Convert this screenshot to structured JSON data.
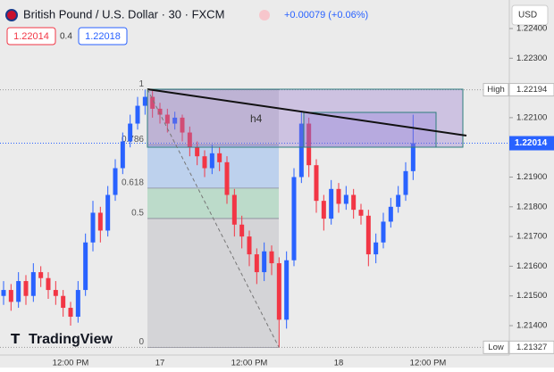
{
  "chart_data": {
    "type": "candlestick",
    "title": "British Pound / U.S. Dollar · 30 · FXCM",
    "change": "+0.00079 (+0.06%)",
    "sell": 1.22014,
    "spread": 0.4,
    "buy": 1.22018,
    "currency": "USD",
    "watermark": "TradingView",
    "drawing_label": "h4",
    "categories": [
      null,
      null,
      null,
      null,
      null,
      null,
      null,
      null,
      null,
      "12:00 PM",
      null,
      null,
      null,
      null,
      null,
      null,
      null,
      null,
      null,
      null,
      null,
      "17",
      null,
      null,
      null,
      null,
      null,
      null,
      null,
      null,
      null,
      null,
      null,
      "12:00 PM",
      null,
      null,
      null,
      null,
      null,
      null,
      null,
      null,
      null,
      null,
      null,
      "18",
      null,
      null,
      null,
      null,
      null,
      null,
      null,
      null,
      null,
      null,
      null,
      "12:00 PM",
      null,
      null
    ],
    "open": [
      1.215,
      1.2152,
      1.2148,
      1.2155,
      1.215,
      1.2158,
      1.2156,
      1.2152,
      1.215,
      1.2146,
      1.2143,
      1.2152,
      1.2168,
      1.2178,
      1.2172,
      1.2184,
      1.2193,
      1.2202,
      1.2208,
      1.2214,
      1.2217,
      1.2213,
      1.2211,
      1.2208,
      1.221,
      1.2205,
      1.22,
      1.2197,
      1.2193,
      1.2198,
      1.2195,
      1.2184,
      1.2174,
      1.217,
      1.2164,
      1.2158,
      1.2165,
      1.2161,
      1.2142,
      1.2162,
      1.219,
      1.2208,
      1.2194,
      1.2182,
      1.2176,
      1.2186,
      1.2181,
      1.2184,
      1.2179,
      1.2177,
      1.2164,
      1.2168,
      1.2175,
      1.218,
      1.2184,
      1.2192,
      null,
      null,
      null,
      null
    ],
    "high": [
      1.2155,
      1.2154,
      1.2158,
      1.2157,
      1.2161,
      1.216,
      1.2158,
      1.2155,
      1.2152,
      1.2148,
      1.2155,
      1.2171,
      1.2182,
      1.218,
      1.2187,
      1.2196,
      1.2205,
      1.2211,
      1.2217,
      1.22194,
      1.2219,
      1.2215,
      1.2213,
      1.2212,
      1.2211,
      1.2207,
      1.2202,
      1.2199,
      1.2201,
      1.22,
      1.2197,
      1.2186,
      1.2177,
      1.2172,
      1.2166,
      1.2168,
      1.2167,
      1.2163,
      1.2165,
      1.2193,
      1.2212,
      1.221,
      1.2196,
      1.2184,
      1.2189,
      1.2188,
      1.2187,
      1.2186,
      1.2181,
      1.2179,
      1.2171,
      1.2178,
      1.2183,
      1.2187,
      1.2195,
      1.2211,
      null,
      null,
      null,
      null
    ],
    "low": [
      1.2147,
      1.2145,
      1.2146,
      1.2147,
      1.2148,
      1.2153,
      1.2149,
      1.2147,
      1.2143,
      1.214,
      1.2141,
      1.215,
      1.2165,
      1.2168,
      1.217,
      1.2182,
      1.2191,
      1.22,
      1.2206,
      1.2211,
      1.221,
      1.2208,
      1.2205,
      1.2206,
      1.2202,
      1.2197,
      1.2194,
      1.219,
      1.2191,
      1.2192,
      1.2181,
      1.217,
      1.2166,
      1.216,
      1.2154,
      1.2155,
      1.2157,
      1.21327,
      1.2139,
      1.216,
      1.2188,
      1.219,
      1.2178,
      1.2172,
      1.2174,
      1.2178,
      1.2179,
      1.2176,
      1.2174,
      1.216,
      1.2161,
      1.2166,
      1.2173,
      1.2178,
      1.2182,
      1.2189,
      null,
      null,
      null,
      null
    ],
    "close": [
      1.2152,
      1.2148,
      1.2155,
      1.215,
      1.2158,
      1.2156,
      1.2152,
      1.215,
      1.2146,
      1.2143,
      1.2152,
      1.2168,
      1.2178,
      1.2172,
      1.2184,
      1.2193,
      1.2202,
      1.2208,
      1.2214,
      1.2217,
      1.2213,
      1.2211,
      1.2208,
      1.221,
      1.2205,
      1.22,
      1.2197,
      1.2193,
      1.2198,
      1.2195,
      1.2184,
      1.2174,
      1.217,
      1.2164,
      1.2158,
      1.2165,
      1.2161,
      1.2142,
      1.2162,
      1.219,
      1.2208,
      1.2194,
      1.2182,
      1.2176,
      1.2186,
      1.2181,
      1.2184,
      1.2179,
      1.2177,
      1.2164,
      1.2168,
      1.2175,
      1.218,
      1.2184,
      1.2192,
      1.22014,
      null,
      null,
      null,
      null
    ],
    "up_color": "#2962ff",
    "down_color": "#f23645",
    "ylim": [
      1.21301,
      1.22496
    ],
    "yticks": [
      {
        "value": 1.224,
        "label": "1.22400"
      },
      {
        "value": 1.223,
        "label": "1.22300"
      },
      {
        "value": 1.221,
        "label": "1.22100"
      },
      {
        "value": 1.219,
        "label": "1.21900"
      },
      {
        "value": 1.218,
        "label": "1.21800"
      },
      {
        "value": 1.217,
        "label": "1.21700"
      },
      {
        "value": 1.216,
        "label": "1.21600"
      },
      {
        "value": 1.215,
        "label": "1.21500"
      },
      {
        "value": 1.214,
        "label": "1.21400"
      }
    ],
    "high_marker": {
      "label": "High",
      "value": 1.22194
    },
    "last_price": 1.22014,
    "low_marker": {
      "label": "Low",
      "value": 1.21327
    },
    "fib": {
      "levels": [
        1,
        0.786,
        0.618,
        0.5,
        0
      ],
      "colors": [
        "rgba(160,160,170,0.30)",
        "rgba(120,170,240,0.40)",
        "rgba(100,190,140,0.35)",
        "rgba(160,160,170,0.30)"
      ]
    }
  }
}
